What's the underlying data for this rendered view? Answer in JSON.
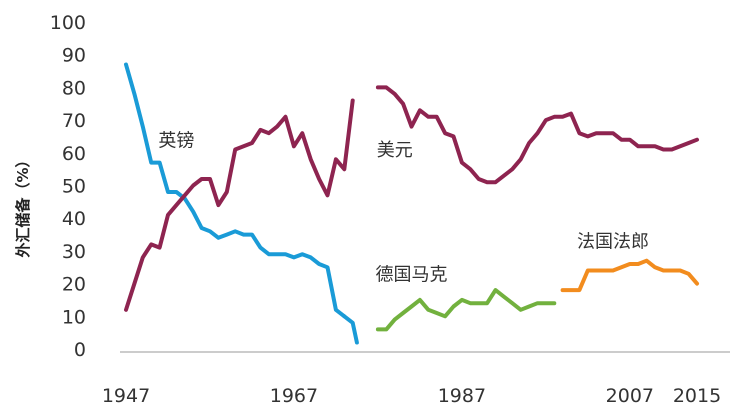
{
  "chart_data": {
    "type": "line",
    "title": "",
    "xlabel": "",
    "ylabel": "外汇储备（%）",
    "ylim": [
      0,
      100
    ],
    "xlim": [
      1946,
      2016
    ],
    "yticks": [
      0,
      10,
      20,
      30,
      40,
      50,
      60,
      70,
      80,
      90,
      100
    ],
    "xticks": [
      1947,
      1967,
      1987,
      2007,
      2015
    ],
    "grid": false,
    "legend": "none",
    "series": [
      {
        "name": "英镑",
        "color": "#1a9bd7",
        "x": [
          1947,
          1948,
          1949,
          1950,
          1951,
          1952,
          1953,
          1954,
          1955,
          1956,
          1957,
          1958,
          1959,
          1960,
          1961,
          1962,
          1963,
          1964,
          1965,
          1966,
          1967,
          1968,
          1969,
          1970,
          1971,
          1972,
          1973
        ],
        "y": [
          87,
          78,
          68,
          57,
          57,
          48,
          48,
          46,
          42,
          37,
          36,
          34,
          35,
          36,
          35,
          35,
          31,
          29,
          29,
          29,
          28,
          29,
          28,
          26,
          25,
          12,
          10
        ]
      },
      {
        "name": "英镑",
        "color": "#1a9bd7",
        "x": [
          1973,
          1974,
          1974.5
        ],
        "y": [
          10,
          8,
          2
        ]
      },
      {
        "name": "",
        "color": "#8e2450",
        "x": [
          1947,
          1948,
          1949,
          1950,
          1951,
          1952,
          1953,
          1954,
          1955,
          1956,
          1957,
          1958,
          1959,
          1960,
          1961,
          1962,
          1963,
          1964,
          1965,
          1966,
          1967,
          1968,
          1969,
          1970,
          1971,
          1972,
          1973,
          1974
        ],
        "y": [
          12,
          20,
          28,
          32,
          31,
          41,
          44,
          47,
          50,
          52,
          52,
          44,
          48,
          61,
          62,
          63,
          67,
          66,
          68,
          71,
          62,
          66,
          58,
          52,
          47,
          58,
          55,
          76
        ]
      },
      {
        "name": "美元",
        "color": "#8e2450",
        "x": [
          1977,
          1978,
          1979,
          1980,
          1981,
          1982,
          1983,
          1984,
          1985,
          1986,
          1987,
          1988,
          1989,
          1990,
          1991,
          1992,
          1993,
          1994,
          1995,
          1996,
          1997,
          1998,
          1999,
          2000,
          2001,
          2002,
          2003,
          2004,
          2005,
          2006,
          2007,
          2008,
          2009,
          2010,
          2011,
          2012,
          2013,
          2014,
          2015
        ],
        "y": [
          80,
          80,
          78,
          75,
          68,
          73,
          71,
          71,
          66,
          65,
          57,
          55,
          52,
          51,
          51,
          53,
          55,
          58,
          63,
          66,
          70,
          71,
          71,
          72,
          66,
          65,
          66,
          66,
          66,
          64,
          64,
          62,
          62,
          62,
          61,
          61,
          62,
          63,
          64
        ]
      },
      {
        "name": "德国马克",
        "color": "#72b13e",
        "x": [
          1977,
          1978,
          1979,
          1980,
          1981,
          1982,
          1983,
          1984,
          1985,
          1986,
          1987,
          1988,
          1989,
          1990,
          1991,
          1992,
          1993,
          1994,
          1995,
          1996,
          1997,
          1998
        ],
        "y": [
          6,
          6,
          9,
          11,
          13,
          15,
          12,
          11,
          10,
          13,
          15,
          14,
          14,
          14,
          18,
          16,
          14,
          12,
          13,
          14,
          14,
          14
        ]
      },
      {
        "name": "法国法郎",
        "color": "#f28c1e",
        "x": [
          1999,
          2000,
          2001,
          2002,
          2003,
          2004,
          2005,
          2006,
          2007,
          2008,
          2009,
          2010,
          2011,
          2012,
          2013,
          2014,
          2015
        ],
        "y": [
          18,
          18,
          18,
          24,
          24,
          24,
          24,
          25,
          26,
          26,
          27,
          25,
          24,
          24,
          24,
          23,
          20
        ]
      }
    ],
    "annotations": [
      {
        "label": "英镑",
        "x": 1953,
        "y": 62
      },
      {
        "label": "美元",
        "x": 1979,
        "y": 59
      },
      {
        "label": "德国马克",
        "x": 1981,
        "y": 21
      },
      {
        "label": "法国法郎",
        "x": 2005,
        "y": 31
      }
    ]
  }
}
